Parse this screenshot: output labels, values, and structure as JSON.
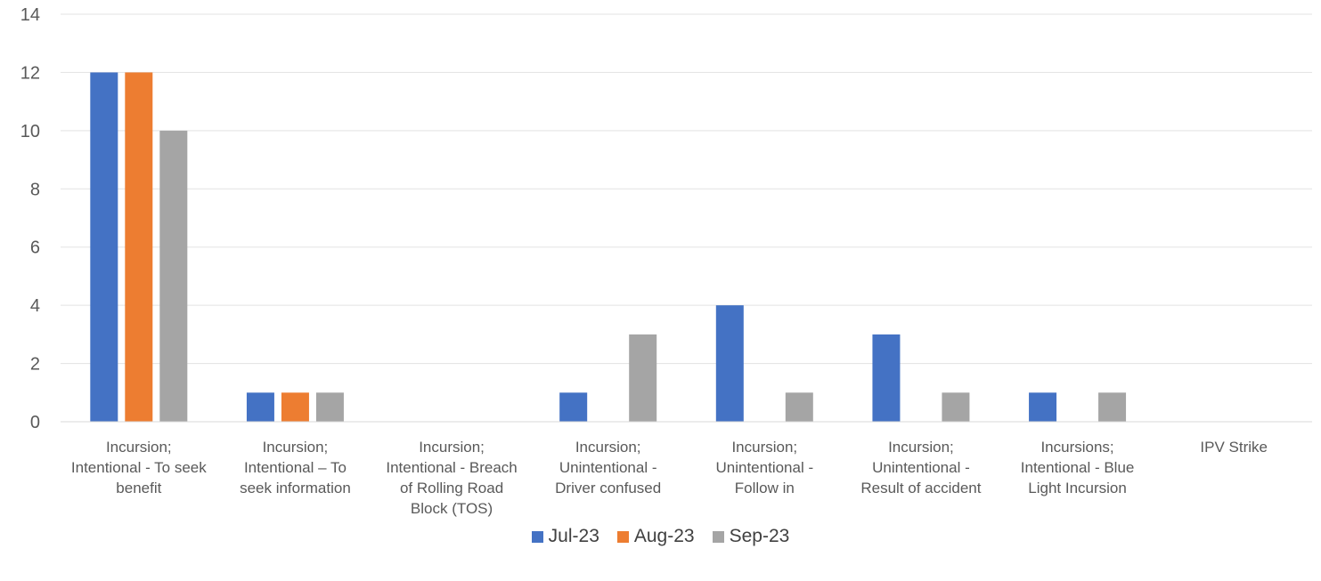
{
  "chart_data": {
    "type": "bar",
    "title": "",
    "xlabel": "",
    "ylabel": "",
    "ylim": [
      0,
      14
    ],
    "yticks": [
      "0",
      "2",
      "4",
      "6",
      "8",
      "10",
      "12",
      "14"
    ],
    "grid": true,
    "legend_position": "bottom",
    "categories": [
      [
        "Incursion;",
        "Intentional - To seek",
        "benefit"
      ],
      [
        "Incursion;",
        "Intentional – To",
        "seek information"
      ],
      [
        "Incursion;",
        "Intentional - Breach",
        "of Rolling Road",
        "Block (TOS)"
      ],
      [
        "Incursion;",
        "Unintentional -",
        "Driver confused"
      ],
      [
        "Incursion;",
        "Unintentional -",
        "Follow in"
      ],
      [
        "Incursion;",
        "Unintentional -",
        "Result of accident"
      ],
      [
        "Incursions;",
        "Intentional - Blue",
        "Light Incursion"
      ],
      [
        "IPV Strike"
      ]
    ],
    "series": [
      {
        "name": "Jul-23",
        "color": "#4472C4",
        "values": [
          12,
          1,
          0,
          1,
          4,
          3,
          1,
          0
        ]
      },
      {
        "name": "Aug-23",
        "color": "#ED7D31",
        "values": [
          12,
          1,
          0,
          0,
          0,
          0,
          0,
          0
        ]
      },
      {
        "name": "Sep-23",
        "color": "#A5A5A5",
        "values": [
          10,
          1,
          0,
          3,
          1,
          1,
          1,
          0
        ]
      }
    ]
  }
}
